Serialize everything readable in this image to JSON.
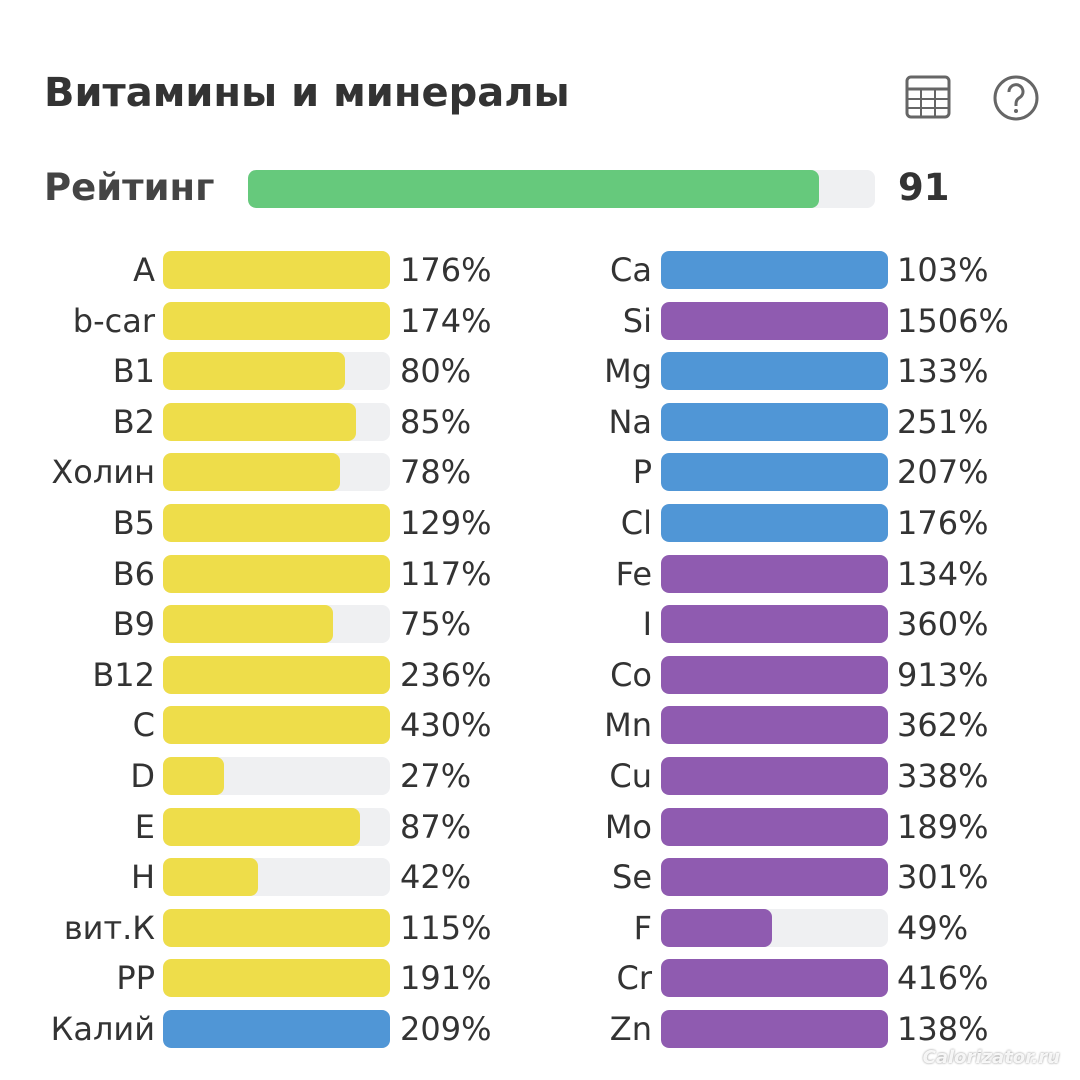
{
  "title": "Витамины и минералы",
  "rating": {
    "label": "Рейтинг",
    "value": 91,
    "color": "#66c97c"
  },
  "vitamins": {
    "labels": [
      "A",
      "b-car",
      "B1",
      "B2",
      "Холин",
      "B5",
      "B6",
      "B9",
      "B12",
      "C",
      "D",
      "E",
      "H",
      "вит.К",
      "PP",
      "Калий"
    ],
    "values": [
      176,
      174,
      80,
      85,
      78,
      129,
      117,
      75,
      236,
      430,
      27,
      87,
      42,
      115,
      191,
      209
    ],
    "value_labels": [
      "176%",
      "174%",
      "80%",
      "85%",
      "78%",
      "129%",
      "117%",
      "75%",
      "236%",
      "430%",
      "27%",
      "87%",
      "42%",
      "115%",
      "191%",
      "209%"
    ],
    "colors": [
      "#eedd4a",
      "#eedd4a",
      "#eedd4a",
      "#eedd4a",
      "#eedd4a",
      "#eedd4a",
      "#eedd4a",
      "#eedd4a",
      "#eedd4a",
      "#eedd4a",
      "#eedd4a",
      "#eedd4a",
      "#eedd4a",
      "#eedd4a",
      "#eedd4a",
      "#5096d6"
    ]
  },
  "minerals": {
    "labels": [
      "Ca",
      "Si",
      "Mg",
      "Na",
      "P",
      "Cl",
      "Fe",
      "I",
      "Co",
      "Mn",
      "Cu",
      "Mo",
      "Se",
      "F",
      "Cr",
      "Zn"
    ],
    "values": [
      103,
      1506,
      133,
      251,
      207,
      176,
      134,
      360,
      913,
      362,
      338,
      189,
      301,
      49,
      416,
      138
    ],
    "value_labels": [
      "103%",
      "1506%",
      "133%",
      "251%",
      "207%",
      "176%",
      "134%",
      "360%",
      "913%",
      "362%",
      "338%",
      "189%",
      "301%",
      "49%",
      "416%",
      "138%"
    ],
    "colors": [
      "#5096d6",
      "#8f5bb0",
      "#5096d6",
      "#5096d6",
      "#5096d6",
      "#5096d6",
      "#8f5bb0",
      "#8f5bb0",
      "#8f5bb0",
      "#8f5bb0",
      "#8f5bb0",
      "#8f5bb0",
      "#8f5bb0",
      "#8f5bb0",
      "#8f5bb0",
      "#8f5bb0"
    ]
  },
  "watermark": "Calorizator.ru"
}
